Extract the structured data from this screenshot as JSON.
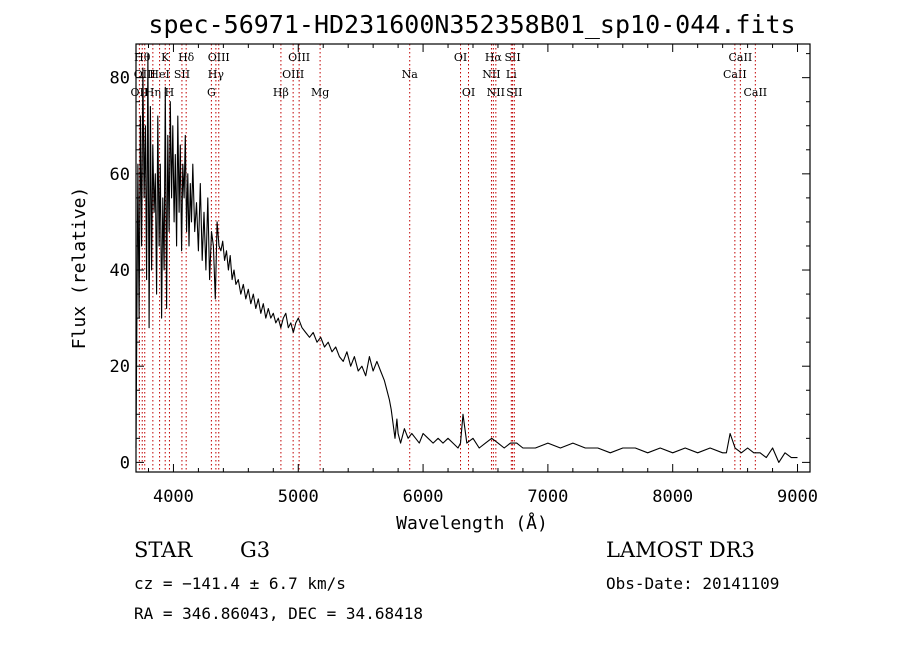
{
  "chart_data": {
    "type": "line",
    "title": "spec-56971-HD231600N352358B01_sp10-044.fits",
    "xlabel": "Wavelength (Å)",
    "ylabel": "Flux (relative)",
    "xlim": [
      3700,
      9100
    ],
    "ylim": [
      -2,
      87
    ],
    "x_ticks": [
      4000,
      5000,
      6000,
      7000,
      8000,
      9000
    ],
    "y_ticks": [
      0,
      20,
      40,
      60,
      80
    ],
    "series": [
      {
        "name": "spectrum",
        "x": [
          3700,
          3715,
          3725,
          3735,
          3745,
          3755,
          3765,
          3775,
          3785,
          3795,
          3805,
          3815,
          3825,
          3835,
          3845,
          3855,
          3865,
          3875,
          3885,
          3895,
          3905,
          3915,
          3925,
          3935,
          3945,
          3955,
          3965,
          3975,
          3985,
          3995,
          4005,
          4015,
          4025,
          4035,
          4045,
          4055,
          4065,
          4075,
          4085,
          4095,
          4105,
          4115,
          4125,
          4135,
          4145,
          4155,
          4170,
          4185,
          4200,
          4215,
          4230,
          4245,
          4260,
          4275,
          4290,
          4305,
          4320,
          4335,
          4350,
          4365,
          4380,
          4395,
          4410,
          4425,
          4440,
          4455,
          4470,
          4485,
          4500,
          4520,
          4540,
          4560,
          4580,
          4600,
          4620,
          4640,
          4660,
          4680,
          4700,
          4720,
          4740,
          4760,
          4780,
          4800,
          4820,
          4840,
          4860,
          4880,
          4900,
          4920,
          4940,
          4960,
          4980,
          5000,
          5030,
          5060,
          5090,
          5120,
          5150,
          5180,
          5210,
          5240,
          5270,
          5300,
          5330,
          5360,
          5390,
          5420,
          5450,
          5480,
          5510,
          5540,
          5570,
          5600,
          5630,
          5660,
          5690,
          5710,
          5730,
          5745,
          5760,
          5775,
          5790,
          5800,
          5820,
          5850,
          5880,
          5910,
          5940,
          5970,
          6000,
          6040,
          6080,
          6120,
          6160,
          6200,
          6240,
          6280,
          6300,
          6320,
          6350,
          6400,
          6450,
          6500,
          6550,
          6600,
          6650,
          6700,
          6750,
          6800,
          6900,
          7000,
          7100,
          7200,
          7300,
          7400,
          7500,
          7600,
          7700,
          7800,
          7900,
          8000,
          8100,
          8200,
          8300,
          8400,
          8430,
          8460,
          8500,
          8550,
          8600,
          8650,
          8700,
          8750,
          8800,
          8850,
          8900,
          8950,
          9000
        ],
        "y": [
          3,
          62,
          30,
          72,
          45,
          82,
          55,
          70,
          38,
          85,
          28,
          74,
          40,
          66,
          52,
          60,
          35,
          72,
          45,
          62,
          30,
          55,
          40,
          78,
          32,
          68,
          48,
          75,
          55,
          70,
          50,
          64,
          45,
          72,
          52,
          66,
          44,
          62,
          55,
          68,
          48,
          60,
          45,
          58,
          50,
          62,
          48,
          54,
          44,
          58,
          42,
          52,
          40,
          55,
          38,
          48,
          45,
          34,
          50,
          45,
          44,
          46,
          42,
          44,
          40,
          43,
          38,
          40,
          37,
          38,
          35,
          37,
          34,
          36,
          33,
          35,
          32,
          34,
          31,
          33,
          30,
          32,
          30,
          31,
          29,
          30,
          28,
          30,
          31,
          28,
          29,
          27,
          29,
          30,
          28,
          27,
          26,
          27,
          25,
          26,
          24,
          25,
          23,
          24,
          22,
          21,
          23,
          20,
          22,
          19,
          20,
          18,
          22,
          19,
          21,
          19,
          17,
          15,
          13,
          11,
          8,
          5,
          9,
          6,
          4,
          7,
          5,
          6,
          5,
          4,
          6,
          5,
          4,
          5,
          4,
          5,
          4,
          3,
          4,
          10,
          4,
          5,
          3,
          4,
          5,
          4,
          3,
          4,
          4,
          3,
          3,
          4,
          3,
          4,
          3,
          3,
          2,
          3,
          3,
          2,
          3,
          2,
          3,
          2,
          3,
          2,
          2,
          6,
          3,
          2,
          3,
          2,
          2,
          1,
          3,
          0,
          2,
          1,
          1
        ]
      }
    ],
    "line_markers": [
      {
        "x": 3727,
        "label": "OII",
        "row": 3
      },
      {
        "x": 3750,
        "label": "Hθ",
        "row": 1
      },
      {
        "x": 3770,
        "label": "OIII",
        "row": 2
      },
      {
        "x": 3835,
        "label": "Hη",
        "row": 3
      },
      {
        "x": 3889,
        "label": "HeI",
        "row": 2
      },
      {
        "x": 3934,
        "label": "K",
        "row": 1
      },
      {
        "x": 3968,
        "label": "H",
        "row": 3
      },
      {
        "x": 4068,
        "label": "SII",
        "row": 2
      },
      {
        "x": 4102,
        "label": "Hδ",
        "row": 1
      },
      {
        "x": 4304,
        "label": "G",
        "row": 3
      },
      {
        "x": 4340,
        "label": "Hγ",
        "row": 2
      },
      {
        "x": 4363,
        "label": "OIII",
        "row": 1
      },
      {
        "x": 4861,
        "label": "Hβ",
        "row": 3
      },
      {
        "x": 4959,
        "label": "OIII",
        "row": 2
      },
      {
        "x": 5007,
        "label": "OIII",
        "row": 1
      },
      {
        "x": 5175,
        "label": "Mg",
        "row": 3
      },
      {
        "x": 5893,
        "label": "Na",
        "row": 2
      },
      {
        "x": 6300,
        "label": "OI",
        "row": 1
      },
      {
        "x": 6364,
        "label": "OI",
        "row": 3
      },
      {
        "x": 6548,
        "label": "NII",
        "row": 2
      },
      {
        "x": 6563,
        "label": "Hα",
        "row": 1
      },
      {
        "x": 6583,
        "label": "NII",
        "row": 3
      },
      {
        "x": 6707,
        "label": "Li",
        "row": 2
      },
      {
        "x": 6717,
        "label": "SII",
        "row": 1
      },
      {
        "x": 6731,
        "label": "SII",
        "row": 3
      },
      {
        "x": 8498,
        "label": "CaII",
        "row": 2
      },
      {
        "x": 8542,
        "label": "CaII",
        "row": 1
      },
      {
        "x": 8662,
        "label": "CaII",
        "row": 3
      }
    ]
  },
  "footer": {
    "object_class": "STAR",
    "subclass": "G3",
    "survey": "LAMOST DR3",
    "redshift": "cz = −141.4 ± 6.7 km/s",
    "obs_date": "Obs-Date: 20141109",
    "coords": "RA = 346.86043, DEC =  34.68418"
  },
  "colors": {
    "spectrum": "#000000",
    "marker": "#c00000",
    "axis": "#000000"
  }
}
